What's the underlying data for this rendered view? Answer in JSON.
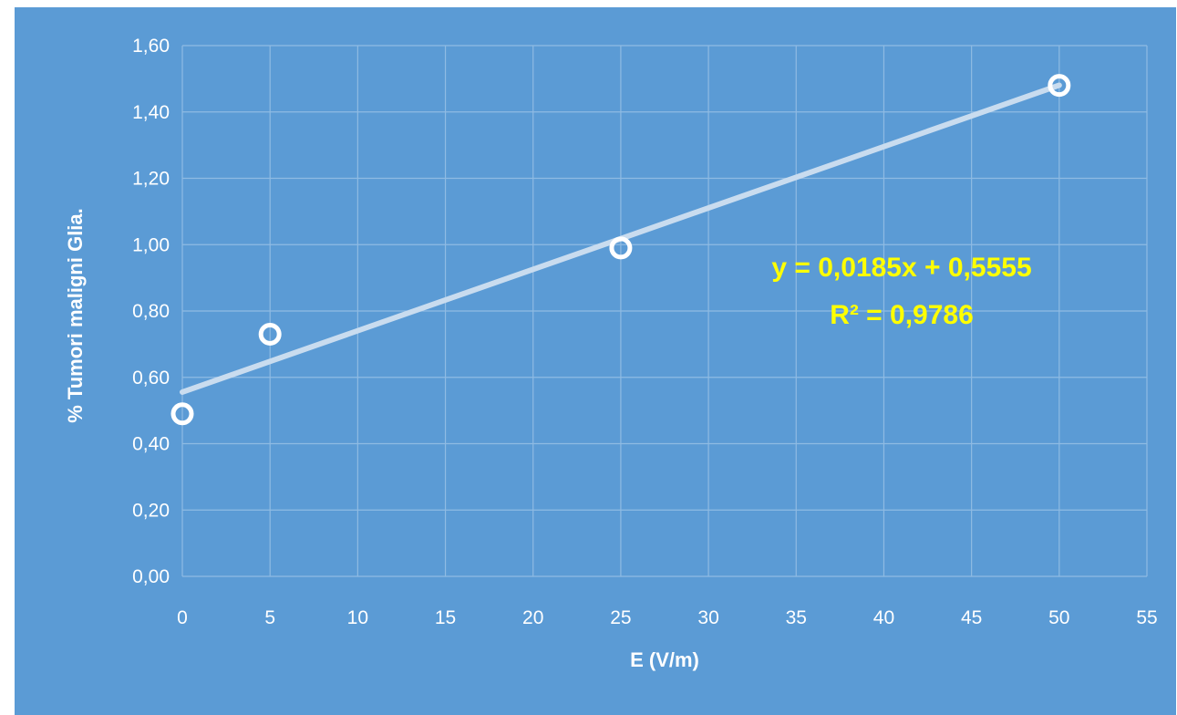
{
  "chart_data": {
    "type": "scatter",
    "title": "",
    "xlabel": "E (V/m)",
    "ylabel": "% Tumori maligni Glia.",
    "xlim": [
      0,
      55
    ],
    "ylim": [
      0,
      1.6
    ],
    "x_ticks": [
      0,
      5,
      10,
      15,
      20,
      25,
      30,
      35,
      40,
      45,
      50,
      55
    ],
    "x_tick_labels": [
      "0",
      "5",
      "10",
      "15",
      "20",
      "25",
      "30",
      "35",
      "40",
      "45",
      "50",
      "55"
    ],
    "y_ticks": [
      0,
      0.2,
      0.4,
      0.6,
      0.8,
      1.0,
      1.2,
      1.4,
      1.6
    ],
    "y_tick_labels": [
      "0,00",
      "0,20",
      "0,40",
      "0,60",
      "0,80",
      "1,00",
      "1,20",
      "1,40",
      "1,60"
    ],
    "grid": true,
    "legend": "none",
    "series": [
      {
        "x": [
          0,
          5,
          25,
          50
        ],
        "y": [
          0.49,
          0.73,
          0.99,
          1.48
        ],
        "marker": "open-circle"
      }
    ],
    "trendline": {
      "type": "linear",
      "slope": 0.0185,
      "intercept": 0.5555,
      "x_range": [
        0,
        50
      ]
    },
    "annotations": [
      "y = 0,0185x + 0,5555",
      "R² = 0,9786"
    ],
    "colors": {
      "background": "#5b9bd5",
      "grid": "#8fbbe3",
      "text": "#ffffff",
      "markers": "#ffffff",
      "trendline": "#c9dcef",
      "annotation": "#ffff00"
    }
  }
}
